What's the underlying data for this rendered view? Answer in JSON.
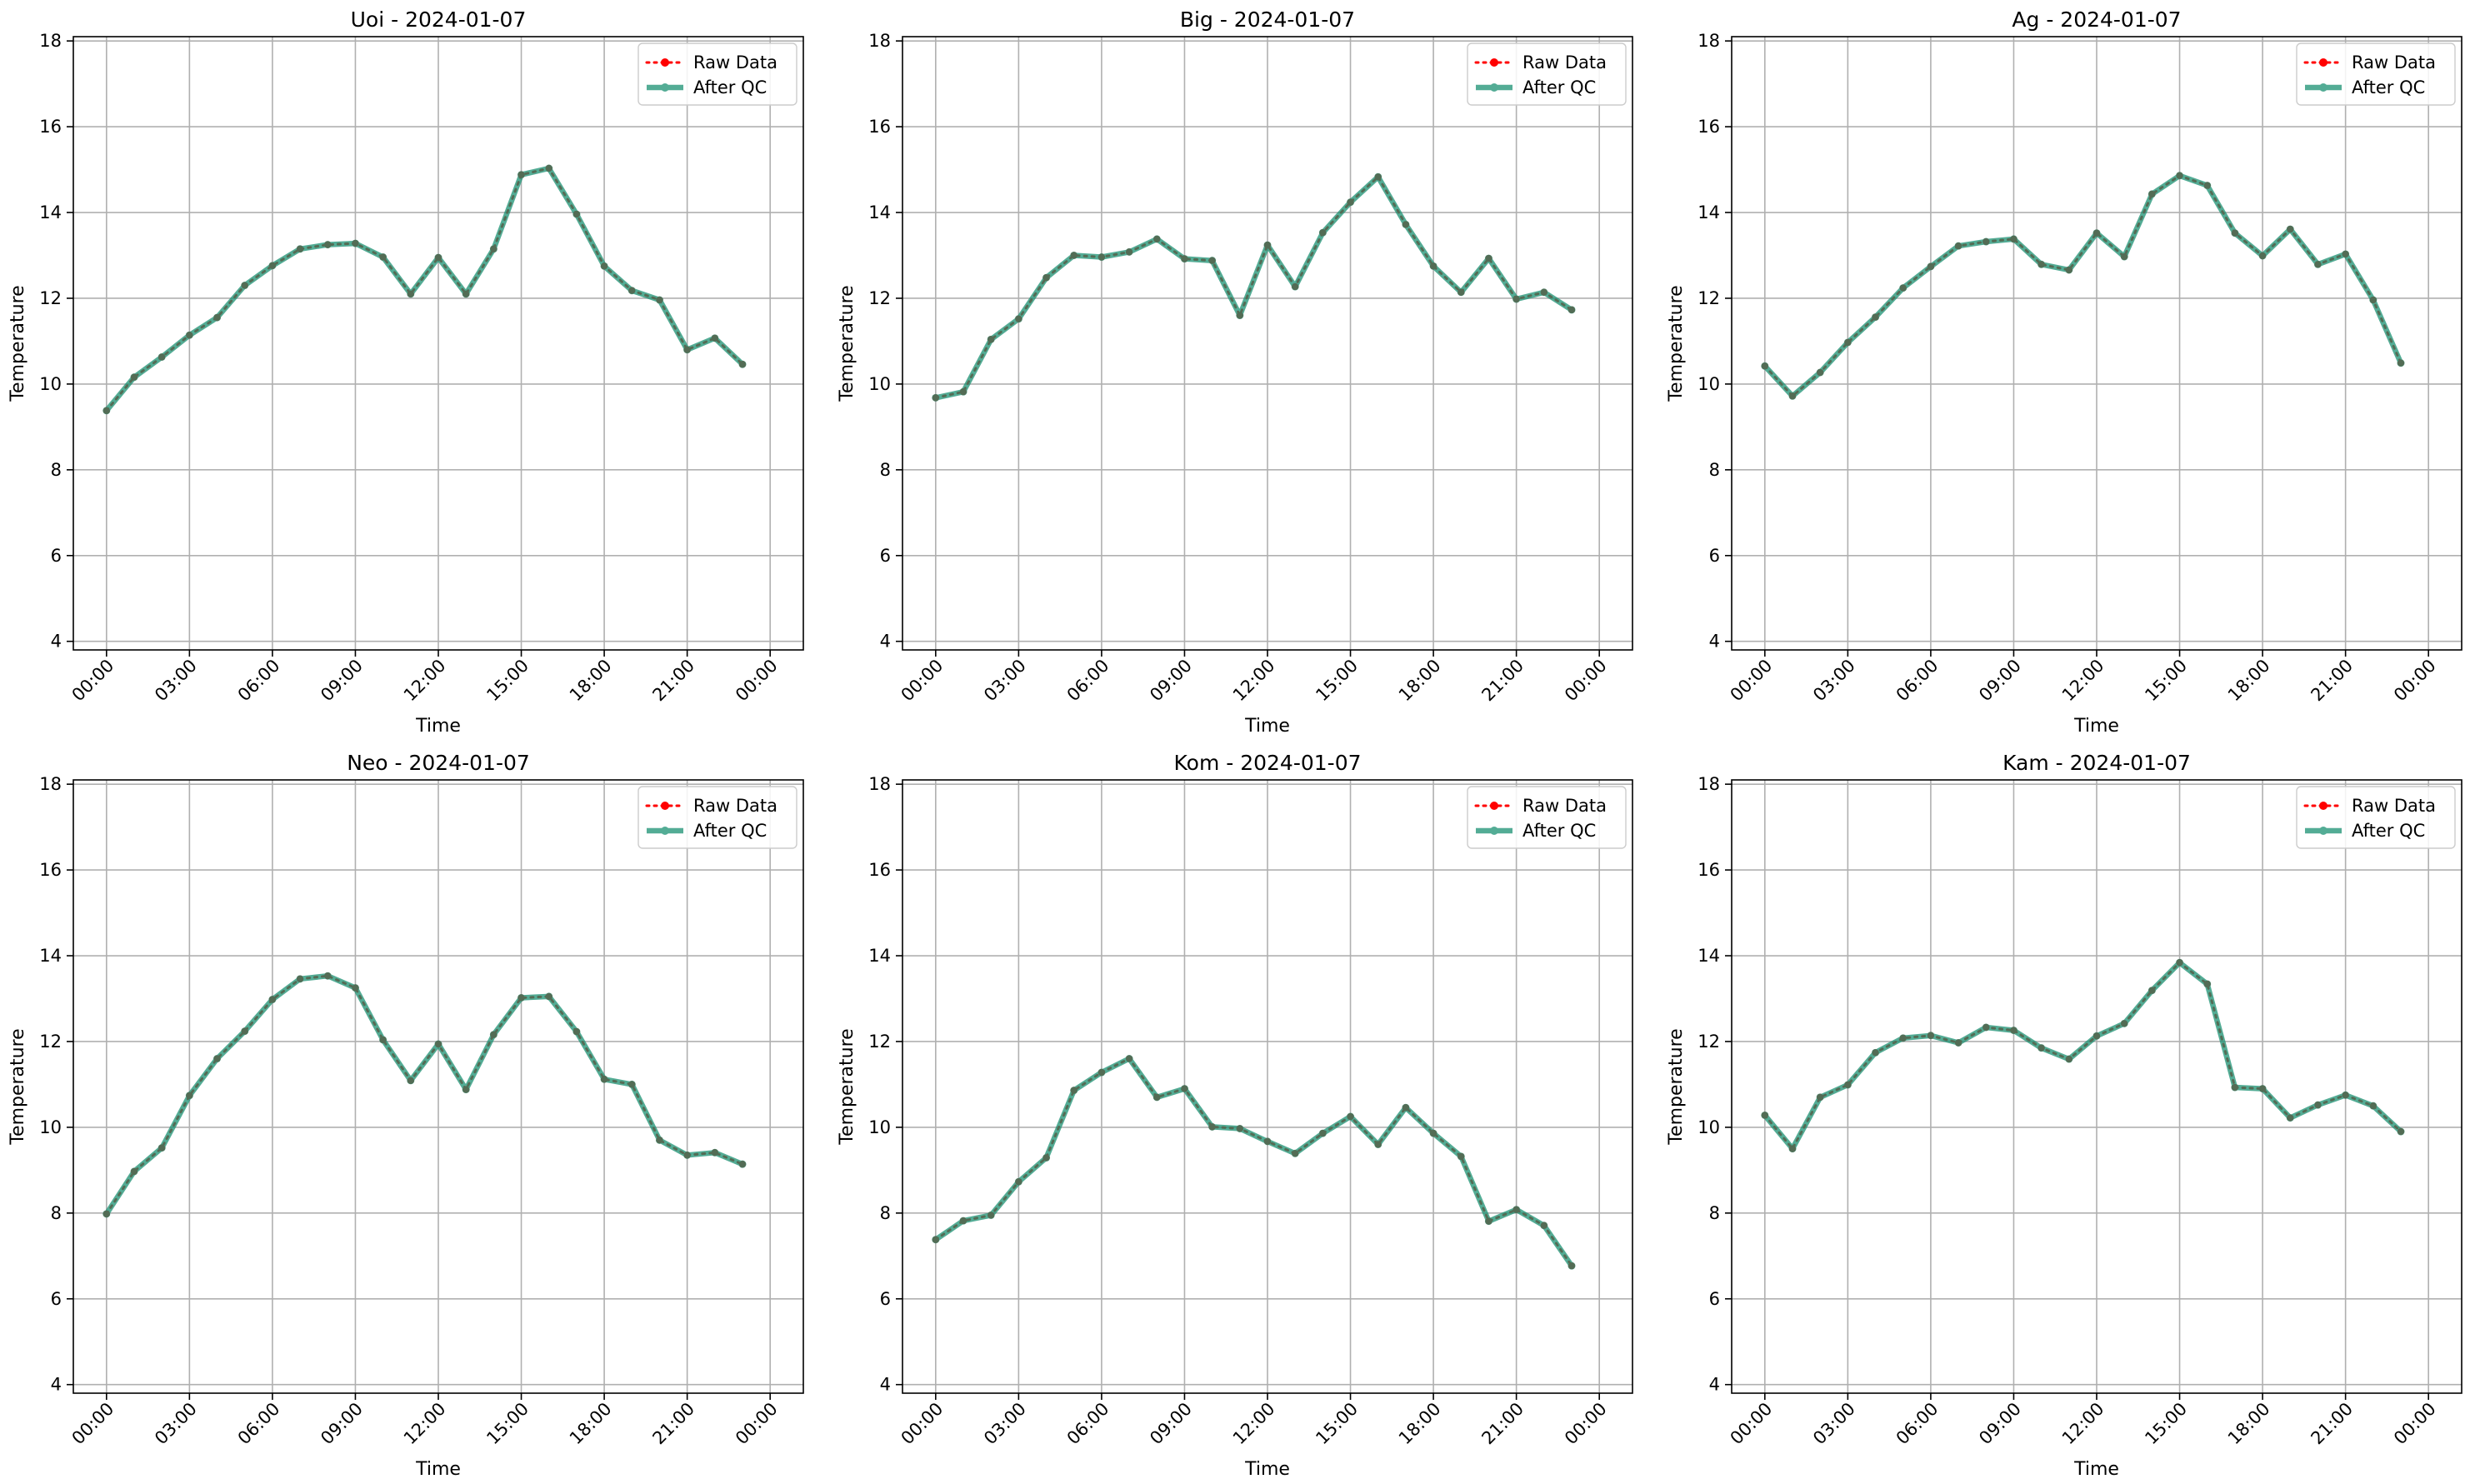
{
  "figure": {
    "colors": {
      "raw": "#ff0000",
      "qc": "#1a9172",
      "qc_alpha": 0.75,
      "grid": "#b0b0b0",
      "frame": "#000000"
    },
    "legend_position": "upper right",
    "grid": true
  },
  "chart_data": [
    {
      "type": "line",
      "title": "Uoi - 2024-01-07",
      "xlabel": "Time",
      "ylabel": "Temperature",
      "ylim": [
        3.8,
        18.1
      ],
      "yticks": [
        4,
        6,
        8,
        10,
        12,
        14,
        16,
        18
      ],
      "xticks": [
        "00:00",
        "03:00",
        "06:00",
        "09:00",
        "12:00",
        "15:00",
        "18:00",
        "21:00",
        "00:00"
      ],
      "x": [
        "00:00",
        "01:00",
        "02:00",
        "03:00",
        "04:00",
        "05:00",
        "06:00",
        "07:00",
        "08:00",
        "09:00",
        "10:00",
        "11:00",
        "12:00",
        "13:00",
        "14:00",
        "15:00",
        "16:00",
        "17:00",
        "18:00",
        "19:00",
        "20:00",
        "21:00",
        "22:00",
        "23:00"
      ],
      "series": [
        {
          "name": "Raw Data",
          "values": [
            9.38,
            10.16,
            10.63,
            11.14,
            11.55,
            12.3,
            12.76,
            13.15,
            13.25,
            13.28,
            12.96,
            12.1,
            12.95,
            12.1,
            13.15,
            14.88,
            15.03,
            13.96,
            12.75,
            12.18,
            11.96,
            10.8,
            11.07,
            10.46
          ]
        },
        {
          "name": "After QC",
          "values": [
            9.38,
            10.16,
            10.63,
            11.14,
            11.55,
            12.3,
            12.76,
            13.15,
            13.25,
            13.28,
            12.96,
            12.1,
            12.95,
            12.1,
            13.15,
            14.88,
            15.03,
            13.96,
            12.75,
            12.18,
            11.96,
            10.8,
            11.07,
            10.46
          ]
        }
      ]
    },
    {
      "type": "line",
      "title": "Big - 2024-01-07",
      "xlabel": "Time",
      "ylabel": "Temperature",
      "ylim": [
        3.8,
        18.1
      ],
      "yticks": [
        4,
        6,
        8,
        10,
        12,
        14,
        16,
        18
      ],
      "xticks": [
        "00:00",
        "03:00",
        "06:00",
        "09:00",
        "12:00",
        "15:00",
        "18:00",
        "21:00",
        "00:00"
      ],
      "x": [
        "00:00",
        "01:00",
        "02:00",
        "03:00",
        "04:00",
        "05:00",
        "06:00",
        "07:00",
        "08:00",
        "09:00",
        "10:00",
        "11:00",
        "12:00",
        "13:00",
        "14:00",
        "15:00",
        "16:00",
        "17:00",
        "18:00",
        "19:00",
        "20:00",
        "21:00",
        "22:00",
        "23:00"
      ],
      "series": [
        {
          "name": "Raw Data",
          "values": [
            9.68,
            9.82,
            11.04,
            11.52,
            12.48,
            13.0,
            12.96,
            13.08,
            13.38,
            12.92,
            12.88,
            11.6,
            13.24,
            12.27,
            13.53,
            14.24,
            14.83,
            13.72,
            12.75,
            12.14,
            12.93,
            11.98,
            12.14,
            11.73
          ]
        },
        {
          "name": "After QC",
          "values": [
            9.68,
            9.82,
            11.04,
            11.52,
            12.48,
            13.0,
            12.96,
            13.08,
            13.38,
            12.92,
            12.88,
            11.6,
            13.24,
            12.27,
            13.53,
            14.24,
            14.83,
            13.72,
            12.75,
            12.14,
            12.93,
            11.98,
            12.14,
            11.73
          ]
        }
      ]
    },
    {
      "type": "line",
      "title": "Ag - 2024-01-07",
      "xlabel": "Time",
      "ylabel": "Temperature",
      "ylim": [
        3.8,
        18.1
      ],
      "yticks": [
        4,
        6,
        8,
        10,
        12,
        14,
        16,
        18
      ],
      "xticks": [
        "00:00",
        "03:00",
        "06:00",
        "09:00",
        "12:00",
        "15:00",
        "18:00",
        "21:00",
        "00:00"
      ],
      "x": [
        "00:00",
        "01:00",
        "02:00",
        "03:00",
        "04:00",
        "05:00",
        "06:00",
        "07:00",
        "08:00",
        "09:00",
        "10:00",
        "11:00",
        "12:00",
        "13:00",
        "14:00",
        "15:00",
        "16:00",
        "17:00",
        "18:00",
        "19:00",
        "20:00",
        "21:00",
        "22:00",
        "23:00"
      ],
      "series": [
        {
          "name": "Raw Data",
          "values": [
            10.42,
            9.72,
            10.27,
            10.97,
            11.56,
            12.24,
            12.74,
            13.22,
            13.32,
            13.38,
            12.79,
            12.66,
            13.52,
            12.97,
            14.43,
            14.86,
            14.63,
            13.52,
            12.99,
            13.61,
            12.79,
            13.03,
            11.96,
            10.49
          ]
        },
        {
          "name": "After QC",
          "values": [
            10.42,
            9.72,
            10.27,
            10.97,
            11.56,
            12.24,
            12.74,
            13.22,
            13.32,
            13.38,
            12.79,
            12.66,
            13.52,
            12.97,
            14.43,
            14.86,
            14.63,
            13.52,
            12.99,
            13.61,
            12.79,
            13.03,
            11.96,
            10.49
          ]
        }
      ]
    },
    {
      "type": "line",
      "title": "Neo - 2024-01-07",
      "xlabel": "Time",
      "ylabel": "Temperature",
      "ylim": [
        3.8,
        18.1
      ],
      "yticks": [
        4,
        6,
        8,
        10,
        12,
        14,
        16,
        18
      ],
      "xticks": [
        "00:00",
        "03:00",
        "06:00",
        "09:00",
        "12:00",
        "15:00",
        "18:00",
        "21:00",
        "00:00"
      ],
      "x": [
        "00:00",
        "01:00",
        "02:00",
        "03:00",
        "04:00",
        "05:00",
        "06:00",
        "07:00",
        "08:00",
        "09:00",
        "10:00",
        "11:00",
        "12:00",
        "13:00",
        "14:00",
        "15:00",
        "16:00",
        "17:00",
        "18:00",
        "19:00",
        "20:00",
        "21:00",
        "22:00",
        "23:00"
      ],
      "series": [
        {
          "name": "Raw Data",
          "values": [
            7.98,
            8.97,
            9.52,
            10.74,
            11.6,
            12.24,
            12.98,
            13.46,
            13.53,
            13.25,
            12.04,
            11.09,
            11.94,
            10.88,
            12.16,
            13.02,
            13.05,
            12.23,
            11.12,
            11.0,
            9.7,
            9.35,
            9.41,
            9.14
          ]
        },
        {
          "name": "After QC",
          "values": [
            7.98,
            8.97,
            9.52,
            10.74,
            11.6,
            12.24,
            12.98,
            13.46,
            13.53,
            13.25,
            12.04,
            11.09,
            11.94,
            10.88,
            12.16,
            13.02,
            13.05,
            12.23,
            11.12,
            11.0,
            9.7,
            9.35,
            9.41,
            9.14
          ]
        }
      ]
    },
    {
      "type": "line",
      "title": "Kom - 2024-01-07",
      "xlabel": "Time",
      "ylabel": "Temperature",
      "ylim": [
        3.8,
        18.1
      ],
      "yticks": [
        4,
        6,
        8,
        10,
        12,
        14,
        16,
        18
      ],
      "xticks": [
        "00:00",
        "03:00",
        "06:00",
        "09:00",
        "12:00",
        "15:00",
        "18:00",
        "21:00",
        "00:00"
      ],
      "x": [
        "00:00",
        "01:00",
        "02:00",
        "03:00",
        "04:00",
        "05:00",
        "06:00",
        "07:00",
        "08:00",
        "09:00",
        "10:00",
        "11:00",
        "12:00",
        "13:00",
        "14:00",
        "15:00",
        "16:00",
        "17:00",
        "18:00",
        "19:00",
        "20:00",
        "21:00",
        "22:00",
        "23:00"
      ],
      "series": [
        {
          "name": "Raw Data",
          "values": [
            7.38,
            7.82,
            7.95,
            8.73,
            9.29,
            10.86,
            11.28,
            11.6,
            10.7,
            10.9,
            10.01,
            9.97,
            9.67,
            9.39,
            9.86,
            10.25,
            9.6,
            10.46,
            9.86,
            9.32,
            7.81,
            8.08,
            7.71,
            6.77
          ]
        },
        {
          "name": "After QC",
          "values": [
            7.38,
            7.82,
            7.95,
            8.73,
            9.29,
            10.86,
            11.28,
            11.6,
            10.7,
            10.9,
            10.01,
            9.97,
            9.67,
            9.39,
            9.86,
            10.25,
            9.6,
            10.46,
            9.86,
            9.32,
            7.81,
            8.08,
            7.71,
            6.77
          ]
        }
      ]
    },
    {
      "type": "line",
      "title": "Kam - 2024-01-07",
      "xlabel": "Time",
      "ylabel": "Temperature",
      "ylim": [
        3.8,
        18.1
      ],
      "yticks": [
        4,
        6,
        8,
        10,
        12,
        14,
        16,
        18
      ],
      "xticks": [
        "00:00",
        "03:00",
        "06:00",
        "09:00",
        "12:00",
        "15:00",
        "18:00",
        "21:00",
        "00:00"
      ],
      "x": [
        "00:00",
        "01:00",
        "02:00",
        "03:00",
        "04:00",
        "05:00",
        "06:00",
        "07:00",
        "08:00",
        "09:00",
        "10:00",
        "11:00",
        "12:00",
        "13:00",
        "14:00",
        "15:00",
        "16:00",
        "17:00",
        "18:00",
        "19:00",
        "20:00",
        "21:00",
        "22:00",
        "23:00"
      ],
      "series": [
        {
          "name": "Raw Data",
          "values": [
            10.28,
            9.5,
            10.7,
            10.99,
            11.74,
            12.08,
            12.14,
            11.97,
            12.33,
            12.26,
            11.85,
            11.59,
            12.13,
            12.42,
            13.19,
            13.84,
            13.34,
            10.93,
            10.9,
            10.22,
            10.52,
            10.75,
            10.5,
            9.9
          ]
        },
        {
          "name": "After QC",
          "values": [
            10.28,
            9.5,
            10.7,
            10.99,
            11.74,
            12.08,
            12.14,
            11.97,
            12.33,
            12.26,
            11.85,
            11.59,
            12.13,
            12.42,
            13.19,
            13.84,
            13.34,
            10.93,
            10.9,
            10.22,
            10.52,
            10.75,
            10.5,
            9.9
          ]
        }
      ]
    }
  ]
}
